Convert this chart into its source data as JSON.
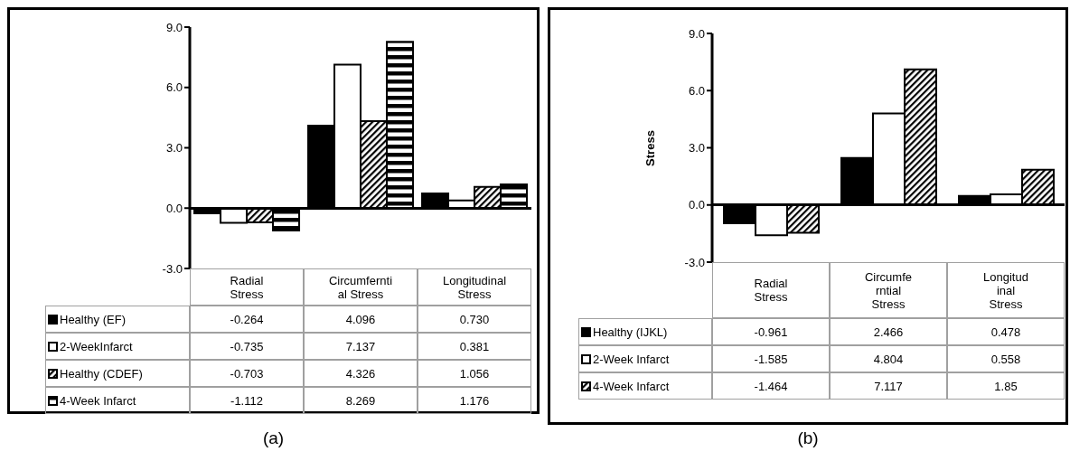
{
  "chart_data": [
    {
      "type": "bar",
      "title": "(a)",
      "categories": [
        "Radial Stress",
        "Circumferntial Stress",
        "Longitudinal Stress"
      ],
      "series": [
        {
          "name": "Healthy (EF)",
          "color": "#000000",
          "values": [
            -0.264,
            4.096,
            0.73
          ],
          "value_labels": [
            "-0.264",
            "4.096",
            "0.730"
          ]
        },
        {
          "name": "2-WeekInfarct",
          "color": "#ffffff",
          "values": [
            -0.735,
            7.137,
            0.381
          ],
          "value_labels": [
            "-0.735",
            "7.137",
            "0.381"
          ]
        },
        {
          "name": "Healthy (CDEF)",
          "color": "#000000",
          "values": [
            -0.703,
            4.326,
            1.056
          ],
          "value_labels": [
            "-0.703",
            "4.326",
            "1.056"
          ]
        },
        {
          "name": "4-Week Infarct",
          "color": "#000000",
          "values": [
            -1.112,
            8.269,
            1.176
          ],
          "value_labels": [
            "-1.112",
            "8.269",
            "1.176"
          ]
        }
      ],
      "ylim": [
        -3,
        9
      ],
      "yticks": [
        {
          "value": -3,
          "label": "-3.0"
        },
        {
          "value": 0,
          "label": "0.0"
        },
        {
          "value": 3,
          "label": "3.0"
        },
        {
          "value": 6,
          "label": "6.0"
        },
        {
          "value": 9,
          "label": "9.0"
        }
      ],
      "legend": "bottom"
    },
    {
      "type": "bar",
      "title": "(b)",
      "ylabel": "Stress",
      "categories": [
        "Radial Stress",
        "Circumferntial Stress",
        "Longitudinal Stress"
      ],
      "series": [
        {
          "name": "Healthy (IJKL)",
          "color": "#000000",
          "values": [
            -0.961,
            2.466,
            0.478
          ],
          "value_labels": [
            "-0.961",
            "2.466",
            "0.478"
          ]
        },
        {
          "name": "2-Week Infarct",
          "color": "#ffffff",
          "values": [
            -1.585,
            4.804,
            0.558
          ],
          "value_labels": [
            "-1.585",
            "4.804",
            "0.558"
          ]
        },
        {
          "name": "4-Week Infarct",
          "color": "#000000",
          "values": [
            -1.464,
            7.117,
            1.85
          ],
          "value_labels": [
            "-1.464",
            "7.117",
            "1.85"
          ]
        }
      ],
      "ylim": [
        -3,
        9
      ],
      "yticks": [
        {
          "value": -3,
          "label": "-3.0"
        },
        {
          "value": 0,
          "label": "0.0"
        },
        {
          "value": 3,
          "label": "3.0"
        },
        {
          "value": 6,
          "label": "6.0"
        },
        {
          "value": 9,
          "label": "9.0"
        }
      ],
      "legend": "bottom"
    }
  ]
}
